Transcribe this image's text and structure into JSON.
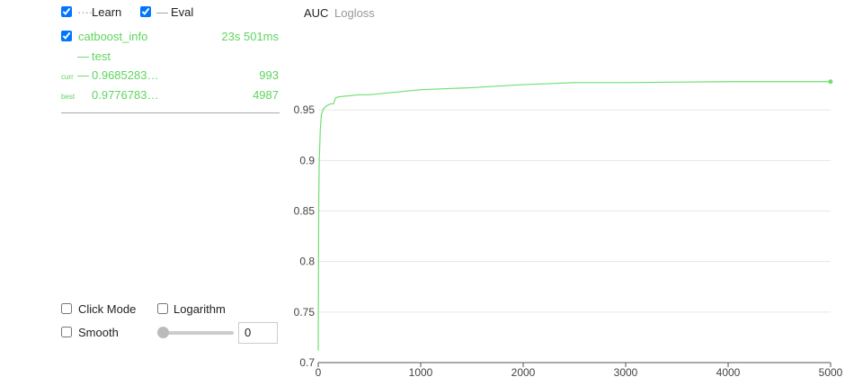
{
  "legend": {
    "learn": "Learn",
    "eval": "Eval"
  },
  "run": {
    "name": "catboost_info",
    "time": "23s 501ms",
    "curr": {
      "label": "curr",
      "value": "0.9685283…",
      "iteration": 993
    },
    "best": {
      "label": "best",
      "value": "0.9776783…",
      "iteration": 4987
    }
  },
  "controls": {
    "click_mode": "Click Mode",
    "logarithm": "Logarithm",
    "smooth": "Smooth",
    "smooth_value": 0
  },
  "tabs": [
    "AUC",
    "Logloss"
  ],
  "chart_data": {
    "type": "line",
    "x": [
      0,
      5,
      10,
      20,
      30,
      50,
      80,
      120,
      150,
      170,
      200,
      300,
      400,
      500,
      700,
      1000,
      1500,
      2000,
      2500,
      3000,
      4000,
      4999
    ],
    "series": [
      {
        "name": "test",
        "color": "#6ee06e",
        "values": [
          0.712,
          0.86,
          0.9,
          0.93,
          0.945,
          0.951,
          0.954,
          0.956,
          0.956,
          0.962,
          0.963,
          0.964,
          0.965,
          0.965,
          0.967,
          0.97,
          0.972,
          0.975,
          0.977,
          0.977,
          0.978,
          0.978
        ]
      }
    ],
    "xlim": [
      0,
      5000
    ],
    "ylim": [
      0.7,
      1.0
    ],
    "xticks": [
      0,
      1000,
      2000,
      3000,
      4000,
      5000
    ],
    "yticks": [
      0.7,
      0.75,
      0.8,
      0.85,
      0.9,
      0.95
    ],
    "grid": true
  }
}
